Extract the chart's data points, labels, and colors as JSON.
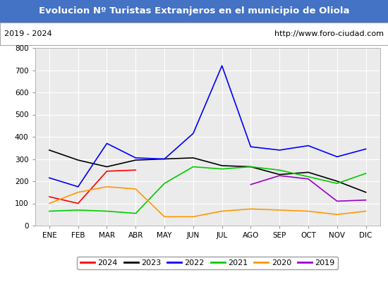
{
  "title": "Evolucion Nº Turistas Extranjeros en el municipio de Oliola",
  "subtitle_left": "2019 - 2024",
  "subtitle_right": "http://www.foro-ciudad.com",
  "title_bg_color": "#4472c4",
  "title_text_color": "#ffffff",
  "months": [
    "ENE",
    "FEB",
    "MAR",
    "ABR",
    "MAY",
    "JUN",
    "JUL",
    "AGO",
    "SEP",
    "OCT",
    "NOV",
    "DIC"
  ],
  "ylim": [
    0,
    800
  ],
  "yticks": [
    0,
    100,
    200,
    300,
    400,
    500,
    600,
    700,
    800
  ],
  "series": {
    "2024": {
      "color": "#ff0000",
      "values": [
        130,
        100,
        245,
        250,
        null,
        null,
        null,
        null,
        null,
        null,
        null,
        null
      ]
    },
    "2023": {
      "color": "#000000",
      "values": [
        340,
        295,
        265,
        295,
        300,
        305,
        270,
        265,
        230,
        240,
        200,
        150
      ]
    },
    "2022": {
      "color": "#0000ff",
      "values": [
        215,
        175,
        370,
        305,
        300,
        415,
        720,
        355,
        340,
        360,
        310,
        345
      ]
    },
    "2021": {
      "color": "#00cc00",
      "values": [
        65,
        70,
        65,
        55,
        190,
        265,
        255,
        265,
        250,
        220,
        190,
        235
      ]
    },
    "2020": {
      "color": "#ff9900",
      "values": [
        100,
        150,
        175,
        165,
        40,
        40,
        65,
        75,
        70,
        65,
        50,
        65
      ]
    },
    "2019": {
      "color": "#9900cc",
      "values": [
        null,
        null,
        null,
        null,
        null,
        null,
        null,
        185,
        225,
        210,
        110,
        115
      ]
    }
  },
  "legend_order": [
    "2024",
    "2023",
    "2022",
    "2021",
    "2020",
    "2019"
  ],
  "plot_bg_color": "#ebebeb",
  "grid_color": "#ffffff",
  "outer_bg_color": "#ffffff"
}
